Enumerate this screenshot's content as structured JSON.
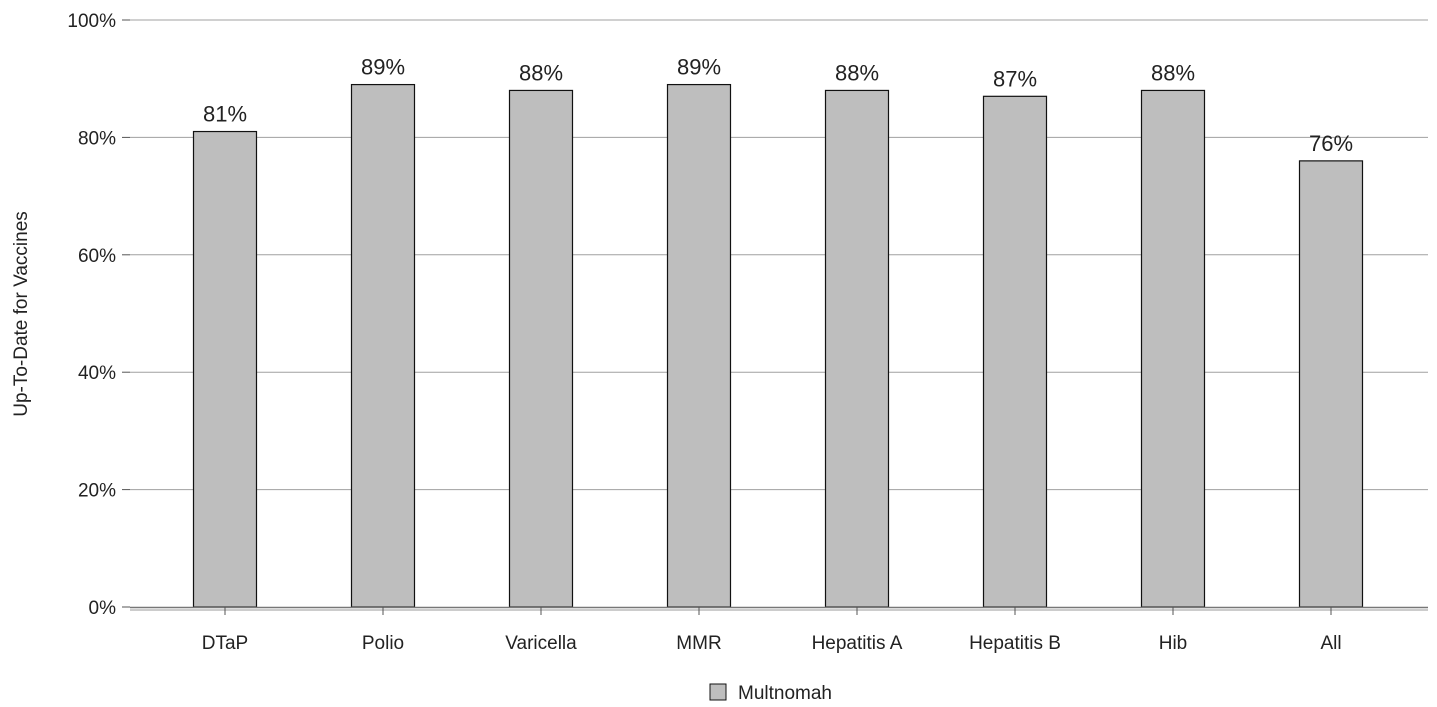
{
  "chart_data": {
    "type": "bar",
    "title": "",
    "xlabel": "",
    "ylabel": "Up-To-Date for Vaccines",
    "categories": [
      "DTaP",
      "Polio",
      "Varicella",
      "MMR",
      "Hepatitis A",
      "Hepatitis B",
      "Hib",
      "All"
    ],
    "series": [
      {
        "name": "Multnomah",
        "values": [
          81,
          89,
          88,
          89,
          88,
          87,
          88,
          76
        ],
        "labels": [
          "81%",
          "89%",
          "88%",
          "89%",
          "88%",
          "87%",
          "88%",
          "76%"
        ],
        "color": "#bebebe"
      }
    ],
    "ylim": [
      0,
      100
    ],
    "yticks": [
      0,
      20,
      40,
      60,
      80,
      100
    ],
    "ytick_labels": [
      "0%",
      "20%",
      "40%",
      "60%",
      "80%",
      "100%"
    ],
    "grid": true,
    "legend_position": "bottom-center",
    "gridline_color": "#a0a0a0",
    "bar_edge_color": "#111111"
  }
}
